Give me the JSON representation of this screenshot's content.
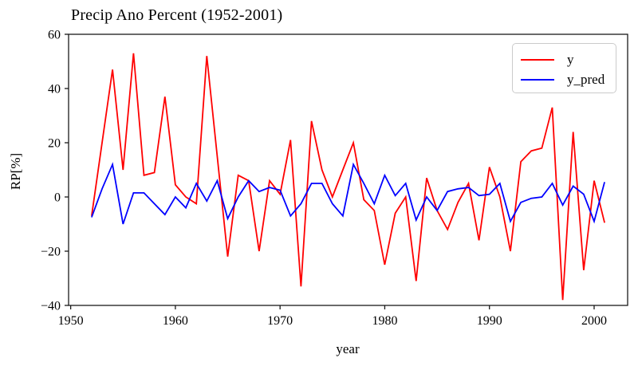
{
  "figure": {
    "background": "#ffffff",
    "axis_color": "#1a1a1a"
  },
  "chart_data": {
    "type": "line",
    "title": "Precip Ano Percent (1952-2001)",
    "xlabel": "year",
    "ylabel": "RP[%]",
    "xlim": [
      1949.8,
      2003.2
    ],
    "ylim": [
      -40,
      60
    ],
    "x_ticks": [
      1950,
      1960,
      1970,
      1980,
      1990,
      2000
    ],
    "y_ticks": [
      -40,
      -20,
      0,
      20,
      40,
      60
    ],
    "grid": false,
    "legend": {
      "position": "upper right",
      "entries": [
        {
          "label": "y",
          "color": "#ff0000"
        },
        {
          "label": "y_pred",
          "color": "#0000ff"
        }
      ]
    },
    "x": [
      1952,
      1953,
      1954,
      1955,
      1956,
      1957,
      1958,
      1959,
      1960,
      1961,
      1962,
      1963,
      1964,
      1965,
      1966,
      1967,
      1968,
      1969,
      1970,
      1971,
      1972,
      1973,
      1974,
      1975,
      1976,
      1977,
      1978,
      1979,
      1980,
      1981,
      1982,
      1983,
      1984,
      1985,
      1986,
      1987,
      1988,
      1989,
      1990,
      1991,
      1992,
      1993,
      1994,
      1995,
      1996,
      1997,
      1998,
      1999,
      2000,
      2001
    ],
    "series": [
      {
        "name": "y",
        "color": "#ff0000",
        "values": [
          -7,
          20,
          47,
          10,
          53,
          8,
          9,
          37,
          4.5,
          0,
          -2.5,
          52,
          15,
          -22,
          8,
          6,
          -20,
          6,
          1,
          21,
          -33,
          28,
          10,
          0,
          10,
          20,
          -1,
          -5,
          -25,
          -6,
          0,
          -31,
          7,
          -5,
          -12,
          -2,
          5,
          -16,
          11,
          0,
          -20,
          13,
          17,
          18,
          33,
          -38,
          24,
          -27,
          6,
          -9.5
        ]
      },
      {
        "name": "y_pred",
        "color": "#0000ff",
        "values": [
          -7.5,
          3,
          12,
          -10,
          1.5,
          1.5,
          -2.5,
          -6.5,
          0,
          -4,
          5,
          -1.5,
          6,
          -8,
          0,
          6,
          2,
          3.5,
          2.5,
          -7,
          -2.5,
          5,
          5,
          -2.5,
          -7,
          12,
          5,
          -2.5,
          8,
          0.5,
          5,
          -8.5,
          0,
          -5,
          2,
          3,
          3.5,
          0.5,
          1,
          5,
          -9,
          -2,
          -0.5,
          0,
          5,
          -3,
          4,
          1,
          -9,
          5.5
        ]
      }
    ]
  }
}
